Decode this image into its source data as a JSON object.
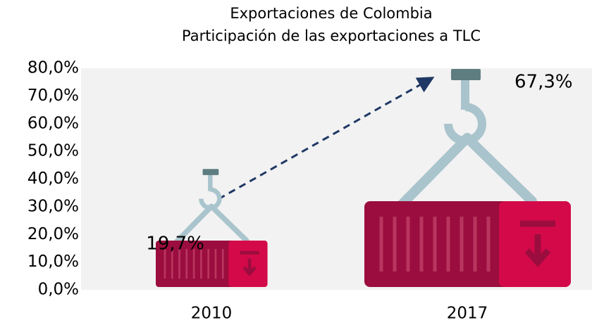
{
  "chart_data": {
    "type": "pictorial-bar",
    "title": "Exportaciones de Colombia",
    "subtitle": "Participación de las exportaciones a TLC",
    "categories": [
      "2010",
      "2017"
    ],
    "values": [
      19.7,
      67.3
    ],
    "value_labels": [
      "19,7%",
      "67,3%"
    ],
    "color": "#9b0d3e",
    "ylim": [
      0,
      80
    ],
    "yticks": [
      {
        "value": 0,
        "label": "0,0%"
      },
      {
        "value": 10,
        "label": "10,0%"
      },
      {
        "value": 20,
        "label": "20,0%"
      },
      {
        "value": 30,
        "label": "30,0%"
      },
      {
        "value": 40,
        "label": "40,0%"
      },
      {
        "value": 50,
        "label": "50,0%"
      },
      {
        "value": 60,
        "label": "60,0%"
      },
      {
        "value": 70,
        "label": "70,0%"
      },
      {
        "value": 80,
        "label": "80,0%"
      }
    ]
  }
}
